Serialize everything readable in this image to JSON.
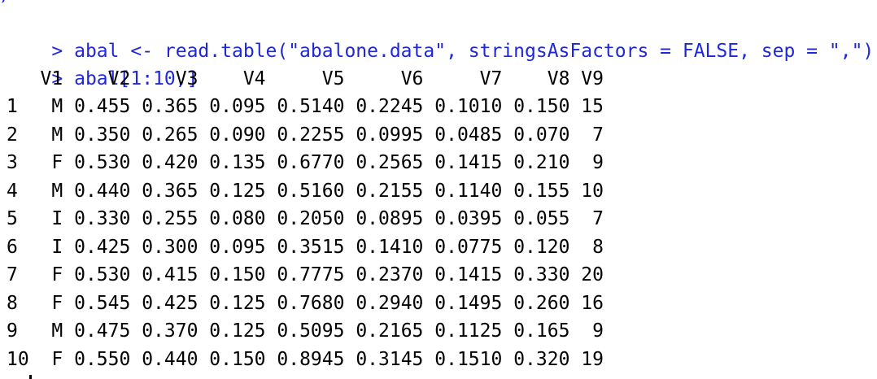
{
  "console": {
    "commands": [
      {
        "prompt": ">",
        "text": "abal <- read.table(\"abalone.data\", stringsAsFactors = FALSE, sep = \",\")"
      },
      {
        "prompt": ">",
        "text": "abal[1:10,]"
      }
    ],
    "table": {
      "columns": [
        "V1",
        "V2",
        "V3",
        "V4",
        "V5",
        "V6",
        "V7",
        "V8",
        "V9"
      ],
      "rows": [
        {
          "idx": "1",
          "cells": [
            "M",
            "0.455",
            "0.365",
            "0.095",
            "0.5140",
            "0.2245",
            "0.1010",
            "0.150",
            "15"
          ]
        },
        {
          "idx": "2",
          "cells": [
            "M",
            "0.350",
            "0.265",
            "0.090",
            "0.2255",
            "0.0995",
            "0.0485",
            "0.070",
            "7"
          ]
        },
        {
          "idx": "3",
          "cells": [
            "F",
            "0.530",
            "0.420",
            "0.135",
            "0.6770",
            "0.2565",
            "0.1415",
            "0.210",
            "9"
          ]
        },
        {
          "idx": "4",
          "cells": [
            "M",
            "0.440",
            "0.365",
            "0.125",
            "0.5160",
            "0.2155",
            "0.1140",
            "0.155",
            "10"
          ]
        },
        {
          "idx": "5",
          "cells": [
            "I",
            "0.330",
            "0.255",
            "0.080",
            "0.2050",
            "0.0895",
            "0.0395",
            "0.055",
            "7"
          ]
        },
        {
          "idx": "6",
          "cells": [
            "I",
            "0.425",
            "0.300",
            "0.095",
            "0.3515",
            "0.1410",
            "0.0775",
            "0.120",
            "8"
          ]
        },
        {
          "idx": "7",
          "cells": [
            "F",
            "0.530",
            "0.415",
            "0.150",
            "0.7775",
            "0.2370",
            "0.1415",
            "0.330",
            "20"
          ]
        },
        {
          "idx": "8",
          "cells": [
            "F",
            "0.545",
            "0.425",
            "0.125",
            "0.7680",
            "0.2940",
            "0.1495",
            "0.260",
            "16"
          ]
        },
        {
          "idx": "9",
          "cells": [
            "M",
            "0.475",
            "0.370",
            "0.125",
            "0.5095",
            "0.2165",
            "0.1125",
            "0.165",
            "9"
          ]
        },
        {
          "idx": "10",
          "cells": [
            "F",
            "0.550",
            "0.440",
            "0.150",
            "0.8945",
            "0.3145",
            "0.1510",
            "0.320",
            "19"
          ]
        }
      ]
    }
  },
  "colors": {
    "command_text": "#1e28d8",
    "output_text": "#000000",
    "background": "#ffffff"
  }
}
